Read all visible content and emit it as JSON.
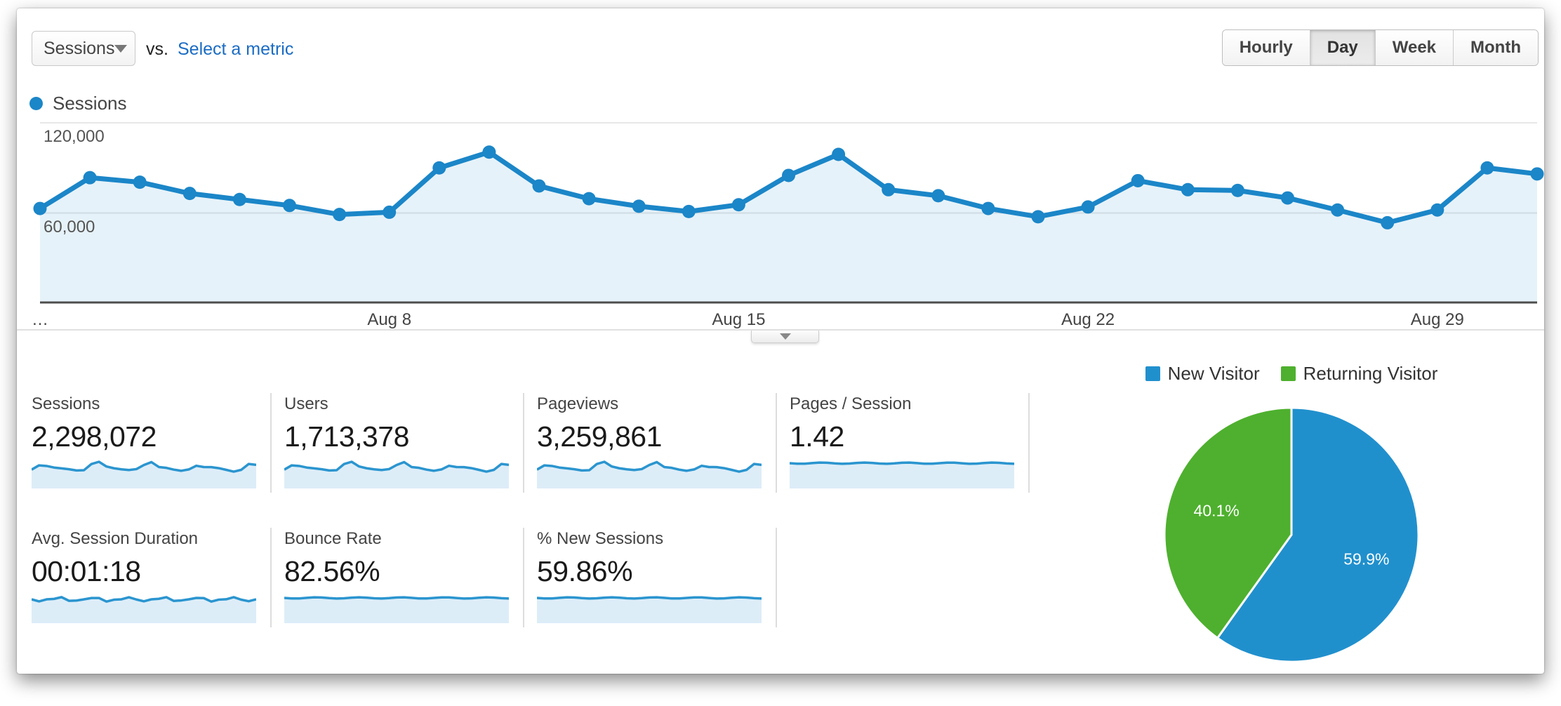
{
  "controls": {
    "metric_selector": "Sessions",
    "vs_label": "vs.",
    "select_metric_label": "Select a metric",
    "granularity_options": [
      "Hourly",
      "Day",
      "Week",
      "Month"
    ],
    "granularity_selected": "Day"
  },
  "legend": {
    "series_label": "Sessions",
    "dot_color": "#1b86c8"
  },
  "chart_data": [
    {
      "type": "line",
      "title": "Sessions by day",
      "series": [
        {
          "name": "Sessions",
          "color": "#1b86c8",
          "values": [
            63000,
            83500,
            80500,
            73000,
            69000,
            65000,
            59000,
            60500,
            90000,
            100500,
            78000,
            69500,
            64500,
            61000,
            65500,
            85000,
            99000,
            75500,
            71500,
            63000,
            57500,
            64000,
            81500,
            75500,
            75000,
            70000,
            62000,
            53500,
            62000,
            90000,
            86000
          ]
        }
      ],
      "x_tick_labels": [
        "…",
        "Aug 8",
        "Aug 15",
        "Aug 22",
        "Aug 29"
      ],
      "x_tick_day_index": [
        0,
        7,
        14,
        21,
        28
      ],
      "y_ticks": [
        120000,
        60000
      ],
      "y_tick_labels": [
        "120,000",
        "60,000"
      ],
      "ylim": [
        0,
        125000
      ],
      "grid": true,
      "area_fill": true,
      "legend_position": "top-left"
    },
    {
      "type": "pie",
      "labels": [
        "New Visitor",
        "Returning Visitor"
      ],
      "values": [
        59.9,
        40.1
      ],
      "value_labels": [
        "59.9%",
        "40.1%"
      ],
      "colors": [
        "#2090cd",
        "#4eb02e"
      ],
      "legend_position": "top"
    }
  ],
  "scorecards": [
    {
      "label": "Sessions",
      "value": "2,298,072",
      "spark": "wavy"
    },
    {
      "label": "Users",
      "value": "1,713,378",
      "spark": "wavy"
    },
    {
      "label": "Pageviews",
      "value": "3,259,861",
      "spark": "wavy"
    },
    {
      "label": "Pages / Session",
      "value": "1.42",
      "spark": "flat"
    },
    {
      "label": "Avg. Session Duration",
      "value": "00:01:18",
      "spark": "noisy"
    },
    {
      "label": "Bounce Rate",
      "value": "82.56%",
      "spark": "flat"
    },
    {
      "label": "% New Sessions",
      "value": "59.86%",
      "spark": "flat"
    }
  ],
  "colors": {
    "line_blue": "#1b86c8",
    "area_fill": "rgba(27,134,200,0.11)",
    "spark_fill": "#ddedf8",
    "spark_line": "#2b95cf",
    "grid": "#e7e7e7",
    "axis": "#4d4d4d",
    "link": "#1b6cc4"
  }
}
